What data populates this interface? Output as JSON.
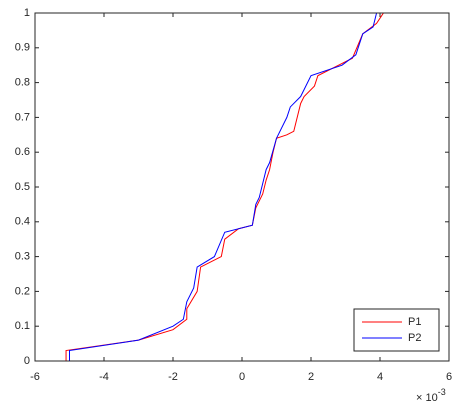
{
  "chart_data": {
    "type": "line",
    "xlim": [
      -6,
      6
    ],
    "xticks": [
      -6,
      -4,
      -2,
      0,
      2,
      4,
      6
    ],
    "ylim": [
      0,
      1
    ],
    "yticks": [
      0,
      0.1,
      0.2,
      0.3,
      0.4,
      0.5,
      0.6,
      0.7,
      0.8,
      0.9,
      1
    ],
    "x_scale_label": "× 10",
    "x_scale_exponent": "-3",
    "legend": "bottom-right",
    "grid": false,
    "series": [
      {
        "name": "P1",
        "color": "#ff0000",
        "x": [
          -5.1,
          -5.1,
          -3.0,
          -2.0,
          -1.6,
          -1.6,
          -1.3,
          -1.2,
          -0.6,
          -0.5,
          -0.1,
          0.3,
          0.4,
          0.6,
          0.7,
          0.8,
          0.9,
          1.0,
          1.3,
          1.5,
          1.7,
          1.8,
          2.1,
          2.2,
          2.8,
          3.2,
          3.5,
          3.9,
          4.1
        ],
        "values": [
          0,
          0.03,
          0.06,
          0.09,
          0.12,
          0.15,
          0.2,
          0.27,
          0.3,
          0.35,
          0.38,
          0.39,
          0.44,
          0.48,
          0.52,
          0.55,
          0.6,
          0.64,
          0.65,
          0.66,
          0.74,
          0.76,
          0.79,
          0.82,
          0.85,
          0.87,
          0.94,
          0.97,
          1.0
        ]
      },
      {
        "name": "P2",
        "color": "#0000ff",
        "x": [
          -5.0,
          -5.0,
          -3.0,
          -2.0,
          -1.7,
          -1.6,
          -1.4,
          -1.3,
          -0.8,
          -0.5,
          0.3,
          0.4,
          0.5,
          0.7,
          0.8,
          1.0,
          1.3,
          1.4,
          1.7,
          2.0,
          2.9,
          3.3,
          3.5,
          3.8,
          3.9
        ],
        "values": [
          0,
          0.03,
          0.06,
          0.1,
          0.12,
          0.17,
          0.21,
          0.27,
          0.3,
          0.37,
          0.39,
          0.45,
          0.47,
          0.55,
          0.57,
          0.64,
          0.7,
          0.73,
          0.76,
          0.82,
          0.85,
          0.88,
          0.94,
          0.96,
          1.0
        ]
      }
    ]
  }
}
